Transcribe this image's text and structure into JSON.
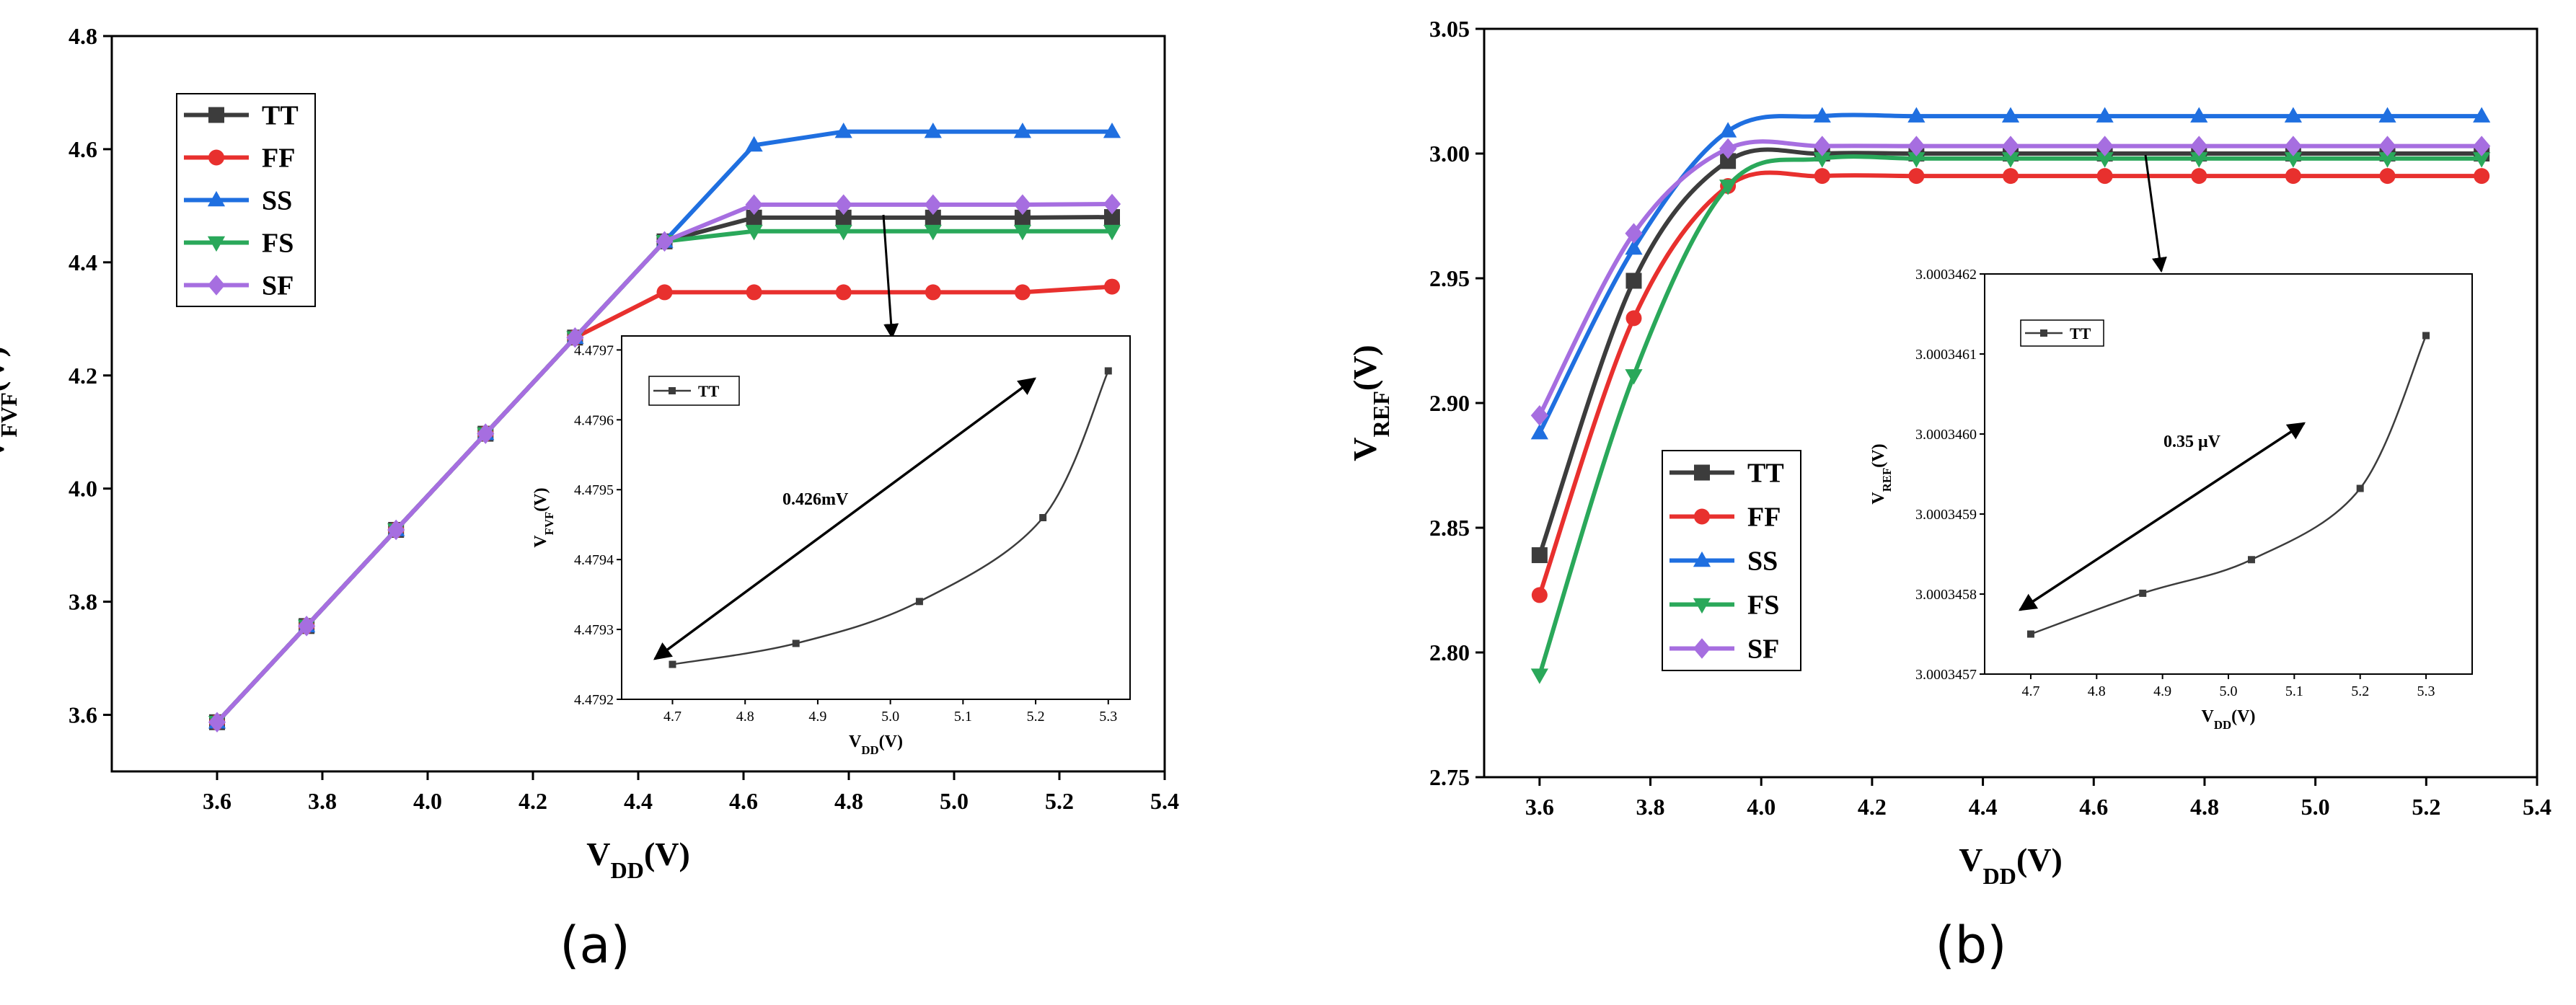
{
  "chart_data": [
    {
      "type": "line",
      "xlabel": "V_DD(V)",
      "ylabel": "V_FVF(V)",
      "xlim": [
        3.4,
        5.4
      ],
      "ylim": [
        3.5,
        4.8
      ],
      "xticks": [
        "3.6",
        "3.8",
        "4.0",
        "4.2",
        "4.4",
        "4.6",
        "4.8",
        "5.0",
        "5.2",
        "5.4"
      ],
      "yticks": [
        "3.6",
        "3.8",
        "4.0",
        "4.2",
        "4.4",
        "4.6",
        "4.8"
      ],
      "legend_position": "top-left",
      "x": [
        3.6,
        3.77,
        3.94,
        4.11,
        4.28,
        4.45,
        4.62,
        4.79,
        4.96,
        5.13,
        5.3
      ],
      "series": [
        {
          "name": "TT",
          "color": "#3c3c3c",
          "marker": "square",
          "values": [
            3.587,
            3.757,
            3.927,
            4.097,
            4.267,
            4.437,
            4.479,
            4.479,
            4.479,
            4.479,
            4.48
          ]
        },
        {
          "name": "FF",
          "color": "#e8302e",
          "marker": "circle",
          "values": [
            3.587,
            3.757,
            3.927,
            4.097,
            4.267,
            4.347,
            4.347,
            4.347,
            4.347,
            4.347,
            4.357
          ]
        },
        {
          "name": "SS",
          "color": "#1f6fe0",
          "marker": "triangle-up",
          "values": [
            3.587,
            3.757,
            3.927,
            4.097,
            4.267,
            4.437,
            4.607,
            4.631,
            4.631,
            4.631,
            4.631
          ]
        },
        {
          "name": "FS",
          "color": "#2aa85a",
          "marker": "triangle-down",
          "values": [
            3.587,
            3.757,
            3.927,
            4.097,
            4.267,
            4.437,
            4.455,
            4.455,
            4.455,
            4.455,
            4.455
          ]
        },
        {
          "name": "SF",
          "color": "#a66ee0",
          "marker": "diamond",
          "values": [
            3.587,
            3.757,
            3.927,
            4.097,
            4.267,
            4.437,
            4.502,
            4.502,
            4.502,
            4.502,
            4.503
          ]
        }
      ],
      "inset": {
        "xlabel": "V_DD(V)",
        "ylabel": "V_FVF(V)",
        "xlim": [
          4.63,
          5.33
        ],
        "ylim": [
          4.4792,
          4.47972
        ],
        "xticks": [
          "4.7",
          "4.8",
          "4.9",
          "5.0",
          "5.1",
          "5.2",
          "5.3"
        ],
        "yticks": [
          "4.4792",
          "4.4793",
          "4.4794",
          "4.4795",
          "4.4796",
          "4.4797"
        ],
        "series": [
          {
            "name": "TT",
            "x": [
              4.7,
              4.87,
              5.04,
              5.21,
              5.3
            ],
            "values": [
              4.47925,
              4.47928,
              4.47934,
              4.47946,
              4.47967
            ]
          }
        ],
        "annotation": "0.426mV"
      },
      "panel_label": "(a)"
    },
    {
      "type": "line",
      "xlabel": "V_DD(V)",
      "ylabel": "V_REF(V)",
      "xlim": [
        3.5,
        5.4
      ],
      "ylim": [
        2.75,
        3.05
      ],
      "xticks": [
        "3.6",
        "3.8",
        "4.0",
        "4.2",
        "4.4",
        "4.6",
        "4.8",
        "5.0",
        "5.2",
        "5.4"
      ],
      "yticks": [
        "2.75",
        "2.80",
        "2.85",
        "2.90",
        "2.95",
        "3.00",
        "3.05"
      ],
      "legend_position": "center-left",
      "x": [
        3.6,
        3.77,
        3.94,
        4.11,
        4.28,
        4.45,
        4.62,
        4.79,
        4.96,
        5.13,
        5.3
      ],
      "series": [
        {
          "name": "TT",
          "color": "#3c3c3c",
          "marker": "square",
          "values": [
            2.839,
            2.949,
            2.997,
            3.0,
            3.0,
            3.0,
            3.0,
            3.0,
            3.0,
            3.0,
            3.0
          ]
        },
        {
          "name": "FF",
          "color": "#e8302e",
          "marker": "circle",
          "values": [
            2.823,
            2.934,
            2.987,
            2.991,
            2.991,
            2.991,
            2.991,
            2.991,
            2.991,
            2.991,
            2.991
          ]
        },
        {
          "name": "SS",
          "color": "#1f6fe0",
          "marker": "triangle-up",
          "values": [
            2.888,
            2.962,
            3.009,
            3.015,
            3.015,
            3.015,
            3.015,
            3.015,
            3.015,
            3.015,
            3.015
          ]
        },
        {
          "name": "FS",
          "color": "#2aa85a",
          "marker": "triangle-down",
          "values": [
            2.791,
            2.911,
            2.987,
            2.998,
            2.998,
            2.998,
            2.998,
            2.998,
            2.998,
            2.998,
            2.998
          ]
        },
        {
          "name": "SF",
          "color": "#a66ee0",
          "marker": "diamond",
          "values": [
            2.895,
            2.968,
            3.002,
            3.003,
            3.003,
            3.003,
            3.003,
            3.003,
            3.003,
            3.003,
            3.003
          ]
        }
      ],
      "inset": {
        "xlabel": "V_DD(V)",
        "ylabel": "V_REF(V)",
        "xlim": [
          4.63,
          5.37
        ],
        "ylim": [
          3.0003457,
          3.0003462
        ],
        "xticks": [
          "4.7",
          "4.8",
          "4.9",
          "5.0",
          "5.1",
          "5.2",
          "5.3"
        ],
        "yticks": [
          "3.0003457",
          "3.0003458",
          "3.0003459",
          "3.0003460",
          "3.0003461",
          "3.0003462"
        ],
        "series": [
          {
            "name": "TT",
            "x": [
              4.7,
              4.87,
              5.035,
              5.2,
              5.3
            ],
            "values": [
              3.00034575,
              3.000345801,
              3.000345843,
              3.000345932,
              3.000346123
            ]
          }
        ],
        "annotation": "0.35 μV"
      },
      "panel_label": "(b)"
    }
  ]
}
